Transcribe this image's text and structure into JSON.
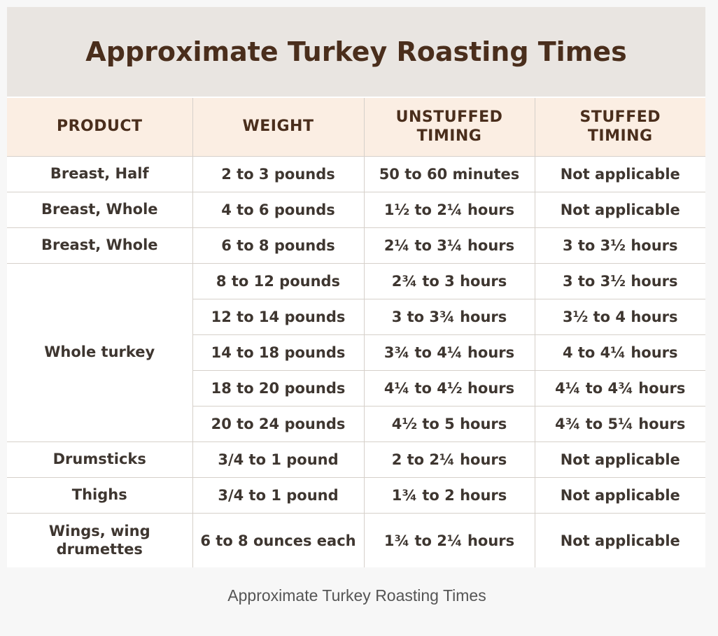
{
  "header": {
    "title": "Approximate Turkey Roasting Times"
  },
  "table": {
    "columns": [
      "PRODUCT",
      "WEIGHT",
      "UNSTUFFED TIMING",
      "STUFFED TIMING"
    ],
    "groups": [
      {
        "product": "Breast, Half",
        "rows": [
          [
            "2 to 3 pounds",
            "50 to 60 minutes",
            "Not applicable"
          ]
        ]
      },
      {
        "product": "Breast, Whole",
        "rows": [
          [
            "4 to 6 pounds",
            "1½ to 2¼ hours",
            "Not applicable"
          ]
        ]
      },
      {
        "product": "Breast, Whole",
        "rows": [
          [
            "6 to 8 pounds",
            "2¼ to 3¼ hours",
            "3 to 3½ hours"
          ]
        ]
      },
      {
        "product": "Whole turkey",
        "rows": [
          [
            "8 to 12 pounds",
            "2¾ to 3 hours",
            "3 to 3½ hours"
          ],
          [
            "12 to 14 pounds",
            "3 to 3¾ hours",
            "3½ to 4 hours"
          ],
          [
            "14 to 18 pounds",
            "3¾ to 4¼ hours",
            "4 to 4¼ hours"
          ],
          [
            "18 to 20 pounds",
            "4¼ to 4½ hours",
            "4¼ to 4¾ hours"
          ],
          [
            "20 to 24 pounds",
            "4½ to 5 hours",
            "4¾ to 5¼ hours"
          ]
        ]
      },
      {
        "product": "Drumsticks",
        "rows": [
          [
            "3/4 to 1 pound",
            "2 to 2¼ hours",
            "Not applicable"
          ]
        ]
      },
      {
        "product": "Thighs",
        "rows": [
          [
            "3/4 to 1 pound",
            "1¾ to 2 hours",
            "Not applicable"
          ]
        ]
      },
      {
        "product": "Wings, wing drumettes",
        "rows": [
          [
            "6 to 8 ounces each",
            "1¾ to 2¼ hours",
            "Not applicable"
          ]
        ]
      }
    ]
  },
  "caption": "Approximate Turkey Roasting Times"
}
